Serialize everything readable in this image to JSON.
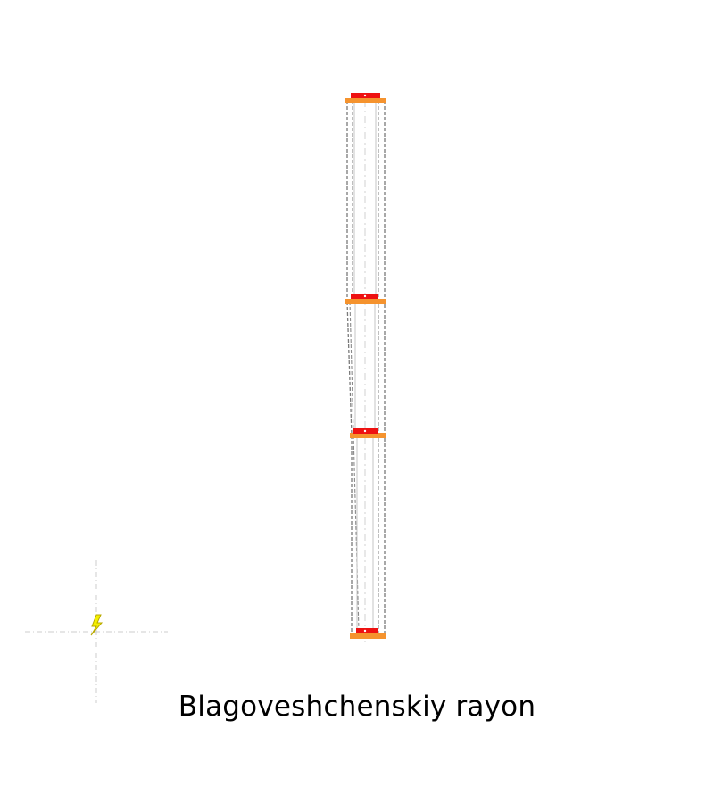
{
  "caption": "Blagoveshchenskiy rayon",
  "diagram": {
    "marker_icon": "lightning-bolt-icon",
    "colors": {
      "red_cap": "#ee1111",
      "orange_bar": "#f5932e",
      "outline": "#7a7a7a",
      "inner_line": "#bdbdbd",
      "centerline": "#d0d0d0",
      "crosshair": "#cccccc",
      "bolt_fill": "#f4f000",
      "bolt_stroke": "#b8a800"
    }
  }
}
